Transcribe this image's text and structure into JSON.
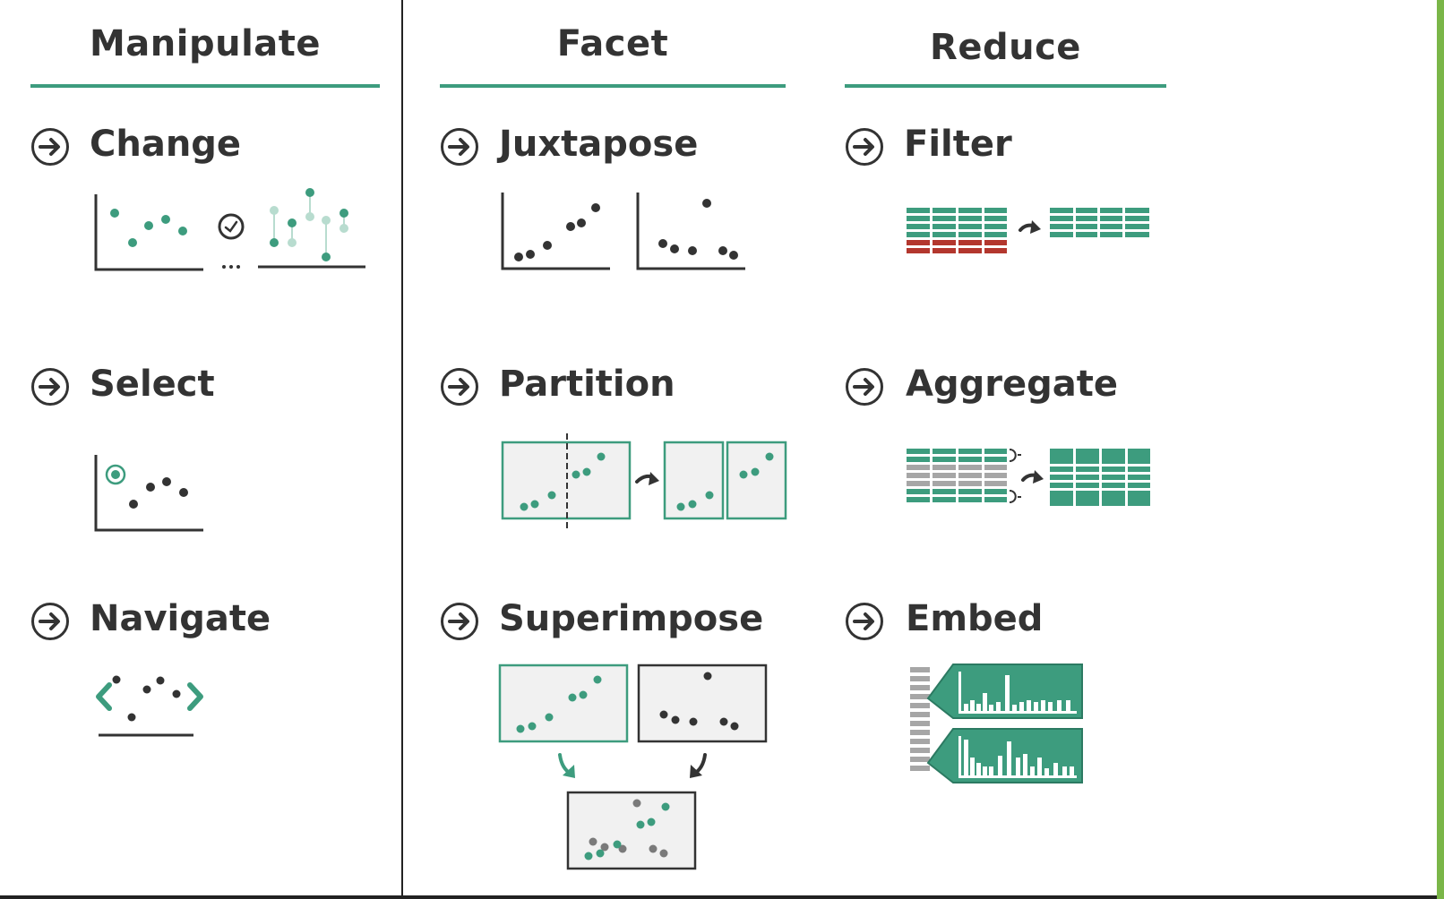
{
  "columns": {
    "manipulate": "Manipulate",
    "facet": "Facet",
    "reduce": "Reduce"
  },
  "items": {
    "change": "Change",
    "select": "Select",
    "navigate": "Navigate",
    "juxtapose": "Juxtapose",
    "partition": "Partition",
    "superimpose": "Superimpose",
    "filter": "Filter",
    "aggregate": "Aggregate",
    "embed": "Embed"
  },
  "icons": {
    "item": "arrow-circle-icon",
    "time": "clock-icon"
  },
  "colors": {
    "accent": "#3d9c7e",
    "dark": "#333333",
    "filtered": "#b3372e",
    "aggregate_grey": "#a6a6a6",
    "panel_fill": "#f1f1f1"
  }
}
